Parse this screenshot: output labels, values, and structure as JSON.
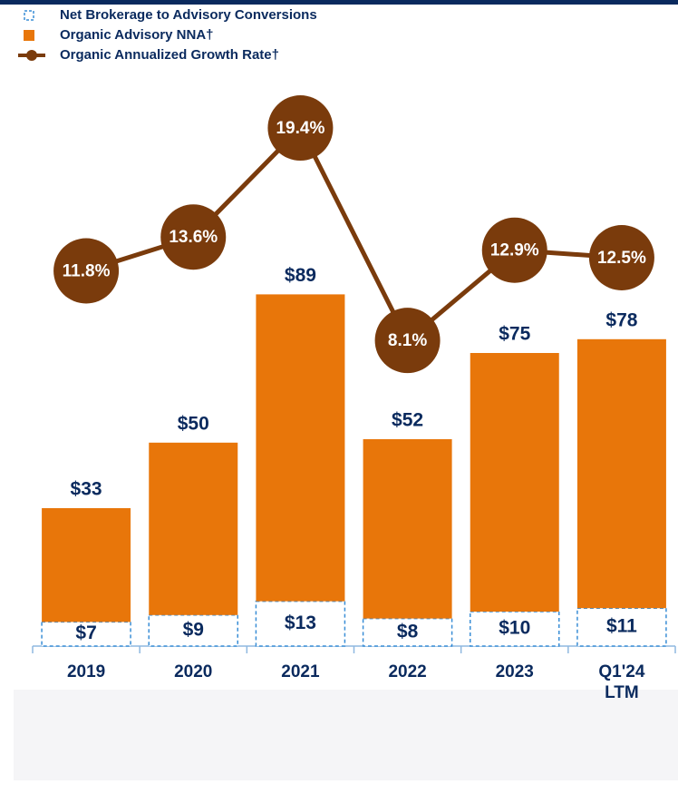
{
  "chart_data": {
    "type": "bar",
    "stacked": true,
    "categories": [
      "2019",
      "2020",
      "2021",
      "2022",
      "2023",
      "Q1'24 LTM"
    ],
    "ylim": [
      0,
      110
    ],
    "y2lim": [
      0,
      25
    ],
    "series": [
      {
        "name": "Net Brokerage to Advisory Conversions",
        "color": "#3a8ed6",
        "values": [
          7,
          9,
          13,
          8,
          10,
          11
        ],
        "value_labels": [
          "$7",
          "$9",
          "$13",
          "$8",
          "$10",
          "$11"
        ]
      },
      {
        "name": "Organic Advisory NNA†",
        "color": "#e8760a",
        "values": [
          33,
          50,
          89,
          52,
          75,
          78
        ],
        "value_labels": [
          "$33",
          "$50",
          "$89",
          "$52",
          "$75",
          "$78"
        ]
      },
      {
        "name": "Organic Annualized Growth Rate†",
        "type": "line",
        "axis": "y2",
        "color": "#7a3b0c",
        "values": [
          11.8,
          13.6,
          19.4,
          8.1,
          12.9,
          12.5
        ],
        "value_labels": [
          "11.8%",
          "13.6%",
          "19.4%",
          "8.1%",
          "12.9%",
          "12.5%"
        ]
      }
    ]
  }
}
